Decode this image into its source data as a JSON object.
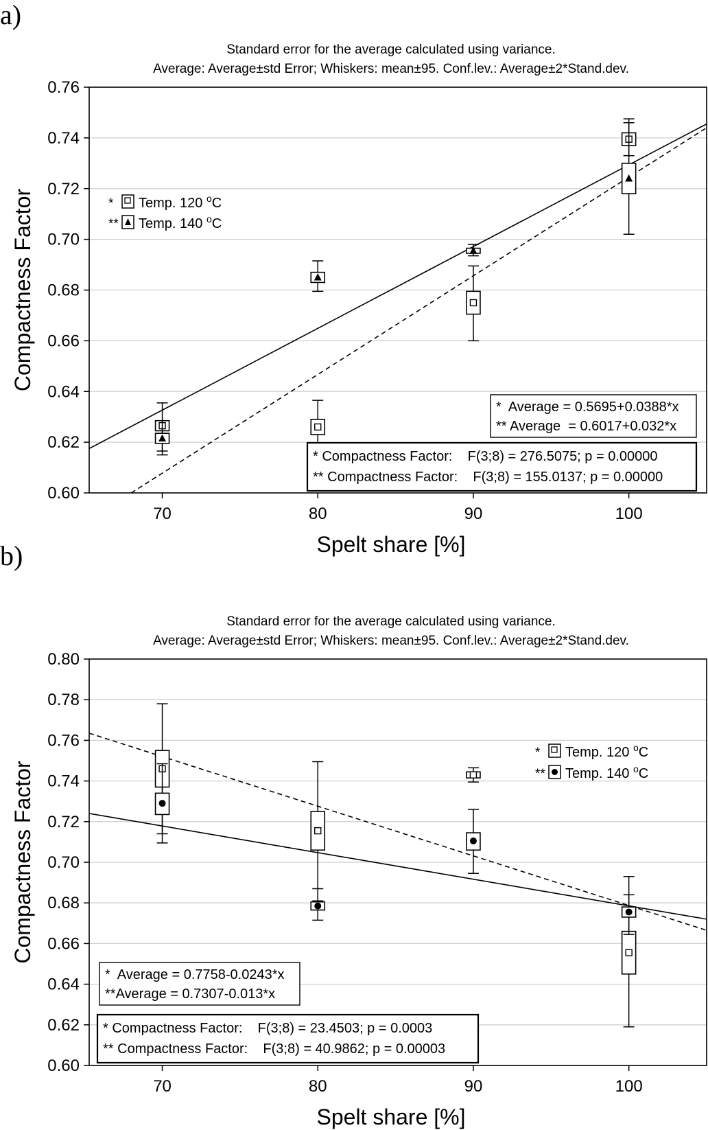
{
  "chart_data": [
    {
      "panel": "a)",
      "type": "box",
      "title_line1": "Standard error for the average calculated using variance.",
      "title_line2": "Average: Average±std Error; Whiskers: mean±95. Conf.lev.: Average±2*Stand.dev.",
      "xlabel": "Spelt share [%]",
      "ylabel": "Compactness Factor",
      "xlim": [
        65.3,
        105
      ],
      "ylim": [
        0.6,
        0.76
      ],
      "xticks": [
        "70",
        "80",
        "90",
        "100"
      ],
      "yticks": [
        "0.60",
        "0.62",
        "0.64",
        "0.66",
        "0.68",
        "0.70",
        "0.72",
        "0.74",
        "0.76"
      ],
      "legend": {
        "position": "top-left",
        "items": [
          {
            "prefix": "*",
            "label": "Temp. 120 ",
            "sup": "o",
            "unit": "C"
          },
          {
            "prefix": "**",
            "label": "Temp. 140 ",
            "sup": "o",
            "unit": "C"
          }
        ]
      },
      "equations": [
        "*  Average = 0.5695+0.0388*x",
        "** Average  = 0.6017+0.032*x"
      ],
      "stats": [
        "* Compactness Factor:    F(3;8) = 276.5075; p = 0.00000",
        "** Compactness Factor:    F(3;8) = 155.0137; p = 0.00000"
      ],
      "series": [
        {
          "name": "Temp. 120 °C",
          "marker": "square",
          "points": [
            {
              "x": 70,
              "mean": 0.6265,
              "se_low": 0.6245,
              "se_high": 0.6285,
              "wh_low": 0.6165,
              "wh_high": 0.6355
            },
            {
              "x": 80,
              "mean": 0.626,
              "se_low": 0.623,
              "se_high": 0.629,
              "wh_low": 0.617,
              "wh_high": 0.6365
            },
            {
              "x": 90,
              "mean": 0.675,
              "se_low": 0.6705,
              "se_high": 0.6795,
              "wh_low": 0.66,
              "wh_high": 0.6895
            },
            {
              "x": 100,
              "mean": 0.7395,
              "se_low": 0.737,
              "se_high": 0.742,
              "wh_low": 0.733,
              "wh_high": 0.746
            }
          ]
        },
        {
          "name": "Temp. 140 °C",
          "marker": "triangle",
          "points": [
            {
              "x": 70,
              "mean": 0.6215,
              "se_low": 0.6195,
              "se_high": 0.6235,
              "wh_low": 0.615,
              "wh_high": 0.6285
            },
            {
              "x": 80,
              "mean": 0.685,
              "se_low": 0.683,
              "se_high": 0.687,
              "wh_low": 0.6795,
              "wh_high": 0.6915
            },
            {
              "x": 90,
              "mean": 0.6955,
              "se_low": 0.6945,
              "se_high": 0.6965,
              "wh_low": 0.6935,
              "wh_high": 0.698
            },
            {
              "x": 100,
              "mean": 0.724,
              "se_low": 0.718,
              "se_high": 0.73,
              "wh_low": 0.702,
              "wh_high": 0.7475
            }
          ]
        }
      ],
      "fit_lines": [
        {
          "name": "* Average",
          "style": "solid",
          "points": [
            [
              65.3,
              0.6175
            ],
            [
              105,
              0.7455
            ]
          ]
        },
        {
          "name": "** Average",
          "style": "dashed",
          "points": [
            [
              68.0,
              0.6
            ],
            [
              105,
              0.744
            ]
          ]
        }
      ]
    },
    {
      "panel": "b)",
      "type": "box",
      "title_line1": "Standard error for the average calculated using variance.",
      "title_line2": "Average: Average±std Error; Whiskers: mean±95. Conf.lev.: Average±2*Stand.dev.",
      "xlabel": "Spelt share [%]",
      "ylabel": "Compactness Factor",
      "xlim": [
        65.3,
        105
      ],
      "ylim": [
        0.6,
        0.8
      ],
      "xticks": [
        "70",
        "80",
        "90",
        "100"
      ],
      "yticks": [
        "0.60",
        "0.62",
        "0.64",
        "0.66",
        "0.68",
        "0.70",
        "0.72",
        "0.74",
        "0.76",
        "0.78",
        "0.80"
      ],
      "legend": {
        "position": "top-right",
        "items": [
          {
            "prefix": "*",
            "label": "Temp. 120 ",
            "sup": "o",
            "unit": "C"
          },
          {
            "prefix": "**",
            "label": "Temp. 140 ",
            "sup": "o",
            "unit": "C"
          }
        ]
      },
      "equations": [
        "*  Average = 0.7758-0.0243*x",
        "**Average = 0.7307-0.013*x"
      ],
      "stats": [
        "* Compactness Factor:    F(3;8) = 23.4503; p = 0.0003",
        "** Compactness Factor:    F(3;8) = 40.9862; p = 0.00003"
      ],
      "series": [
        {
          "name": "Temp. 120 °C",
          "marker": "square",
          "points": [
            {
              "x": 70,
              "mean": 0.746,
              "se_low": 0.737,
              "se_high": 0.755,
              "wh_low": 0.714,
              "wh_high": 0.778
            },
            {
              "x": 80,
              "mean": 0.7155,
              "se_low": 0.706,
              "se_high": 0.725,
              "wh_low": 0.681,
              "wh_high": 0.7495
            },
            {
              "x": 90,
              "mean": 0.743,
              "se_low": 0.7415,
              "se_high": 0.7445,
              "wh_low": 0.7395,
              "wh_high": 0.7465
            },
            {
              "x": 100,
              "mean": 0.6555,
              "se_low": 0.645,
              "se_high": 0.666,
              "wh_low": 0.619,
              "wh_high": 0.684
            }
          ]
        },
        {
          "name": "Temp. 140 °C",
          "marker": "circle",
          "points": [
            {
              "x": 70,
              "mean": 0.729,
              "se_low": 0.7235,
              "se_high": 0.734,
              "wh_low": 0.7095,
              "wh_high": 0.7485
            },
            {
              "x": 80,
              "mean": 0.6785,
              "se_low": 0.6765,
              "se_high": 0.6805,
              "wh_low": 0.6715,
              "wh_high": 0.687
            },
            {
              "x": 90,
              "mean": 0.7105,
              "se_low": 0.706,
              "se_high": 0.7145,
              "wh_low": 0.6945,
              "wh_high": 0.726
            },
            {
              "x": 100,
              "mean": 0.6755,
              "se_low": 0.673,
              "se_high": 0.678,
              "wh_low": 0.6645,
              "wh_high": 0.693
            }
          ]
        }
      ],
      "fit_lines": [
        {
          "name": "* Average",
          "style": "solid",
          "points": [
            [
              65.3,
              0.724
            ],
            [
              105,
              0.672
            ]
          ]
        },
        {
          "name": "** Average",
          "style": "dashed",
          "points": [
            [
              65.3,
              0.7635
            ],
            [
              105,
              0.6665
            ]
          ]
        }
      ]
    }
  ]
}
